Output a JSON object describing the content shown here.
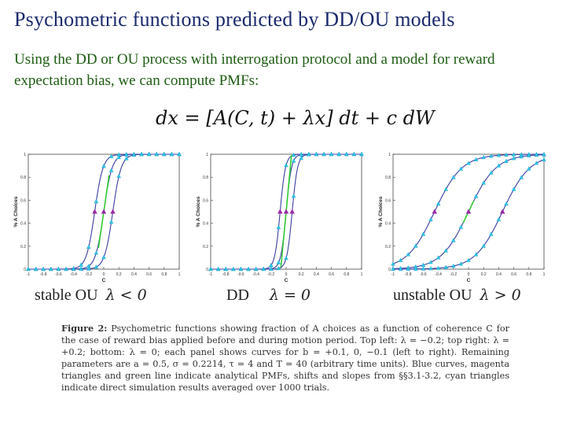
{
  "slide": {
    "title": "Psychometric functions predicted by DD/OU models",
    "intro": "Using the DD or OU process with interrogation protocol and a model for reward expectation bias, we can compute PMFs:",
    "equation": "dx = [A(C, t) + λx] dt + c dW"
  },
  "panels": [
    {
      "label": "stable OU",
      "condition": "λ < 0",
      "lambda": -0.2
    },
    {
      "label": "DD",
      "condition": "λ = 0",
      "lambda": 0
    },
    {
      "label": "unstable OU",
      "condition": "λ > 0",
      "lambda": 0.2
    }
  ],
  "caption": {
    "figure_label": "Figure 2:",
    "text": " Psychometric functions showing fraction of A choices as a function of coherence C for the case of reward bias applied before and during motion period. Top left: λ = −0.2; top right: λ = +0.2; bottom: λ = 0; each panel shows curves for b = +0.1, 0, −0.1 (left to right). Remaining parameters are a = 0.5, σ = 0.2214, τ = 4 and T = 40 (arbitrary time units). Blue curves, magenta triangles and green line indicate analytical PMFs, shifts and slopes from §§3.1-3.2, cyan triangles indicate direct simulation results averaged over 1000 trials."
  },
  "chart_data": [
    {
      "type": "line",
      "xlabel": "C",
      "ylabel": "% A Choices",
      "xlim": [
        -1,
        1
      ],
      "ylim": [
        0,
        1
      ],
      "x_ticks": [
        "-1",
        "-0.8",
        "-0.6",
        "-0.4",
        "-0.2",
        "0",
        "0.2",
        "0.4",
        "0.6",
        "0.8",
        "1"
      ],
      "y_ticks": [
        "0",
        "0.2",
        "0.4",
        "0.6",
        "0.8",
        "1"
      ],
      "series": [
        {
          "midpoint": -0.12,
          "slope": 18
        },
        {
          "midpoint": 0.0,
          "slope": 18
        },
        {
          "midpoint": 0.12,
          "slope": 18
        }
      ],
      "colors": {
        "curve": "#3a3fa0",
        "sim": "#2ec4e6",
        "shift": "#9b2aa8",
        "slope": "#33cc33"
      }
    },
    {
      "type": "line",
      "xlabel": "C",
      "ylabel": "% A Choices",
      "xlim": [
        -1,
        1
      ],
      "ylim": [
        0,
        1
      ],
      "x_ticks": [
        "-1",
        "-0.8",
        "-0.6",
        "-0.4",
        "-0.2",
        "0",
        "0.2",
        "0.4",
        "0.6",
        "0.8",
        "1"
      ],
      "y_ticks": [
        "0",
        "0.2",
        "0.4",
        "0.6",
        "0.8",
        "1"
      ],
      "series": [
        {
          "midpoint": -0.08,
          "slope": 28
        },
        {
          "midpoint": 0.0,
          "slope": 28
        },
        {
          "midpoint": 0.08,
          "slope": 28
        }
      ],
      "colors": {
        "curve": "#3a3fa0",
        "sim": "#2ec4e6",
        "shift": "#9b2aa8",
        "slope": "#33cc33"
      }
    },
    {
      "type": "line",
      "xlabel": "C",
      "ylabel": "% A Choices",
      "xlim": [
        -1,
        1
      ],
      "ylim": [
        0,
        1
      ],
      "x_ticks": [
        "-1",
        "-0.8",
        "-0.6",
        "-0.4",
        "-0.2",
        "0",
        "0.2",
        "0.4",
        "0.6",
        "0.8",
        "1"
      ],
      "y_ticks": [
        "0",
        "0.2",
        "0.4",
        "0.6",
        "0.8",
        "1"
      ],
      "series": [
        {
          "midpoint": -0.45,
          "slope": 5.5
        },
        {
          "midpoint": 0.0,
          "slope": 5.5
        },
        {
          "midpoint": 0.45,
          "slope": 5.5
        }
      ],
      "colors": {
        "curve": "#3a3fa0",
        "sim": "#2ec4e6",
        "shift": "#9b2aa8",
        "slope": "#33cc33"
      }
    }
  ]
}
